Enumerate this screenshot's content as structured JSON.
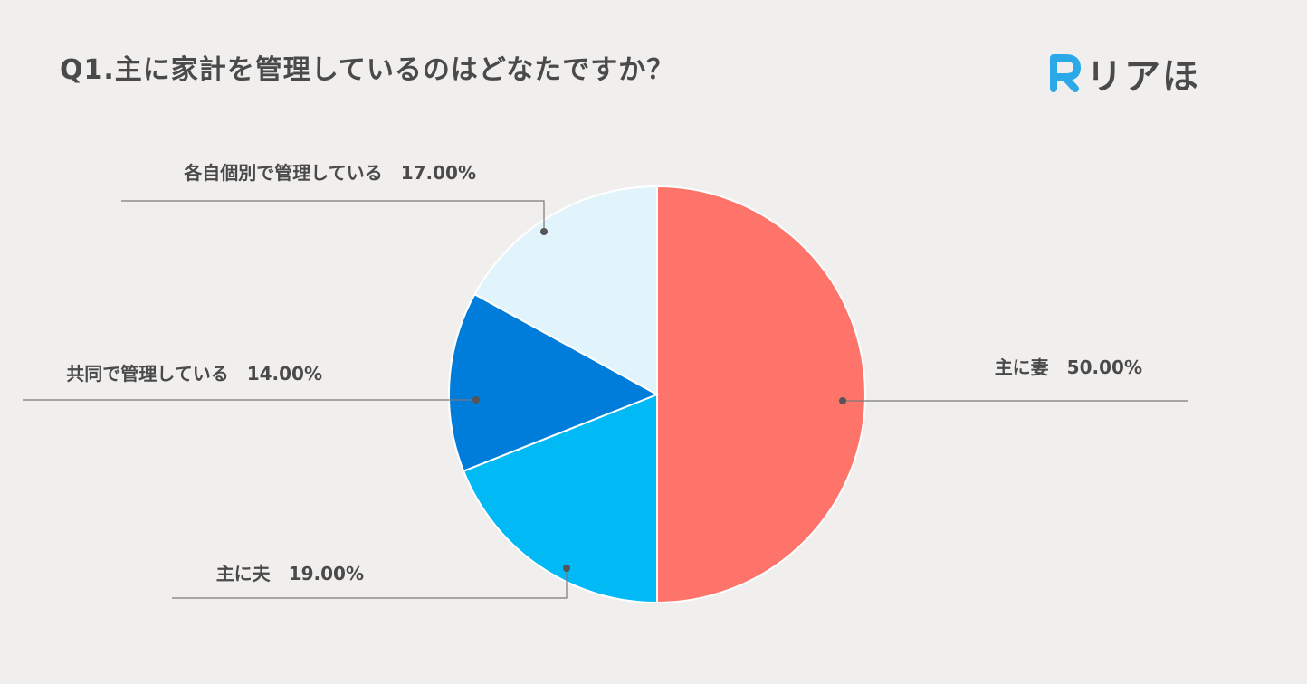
{
  "header": {
    "title": "Q1.主に家計を管理しているのはどなたですか？",
    "logo_text": "リアほ",
    "logo_letter": "R"
  },
  "colors": {
    "background": "#f0efed",
    "logo_accent": "#2aa8e8",
    "text": "#4a4a4a",
    "leader_line": "#7a7a7a"
  },
  "chart_data": {
    "type": "pie",
    "title": "",
    "slices": [
      {
        "label": "主に妻",
        "value": 50.0,
        "display": "50.00%",
        "color": "#ff746a"
      },
      {
        "label": "主に夫",
        "value": 19.0,
        "display": "19.00%",
        "color": "#00b9f5"
      },
      {
        "label": "共同で管理している",
        "value": 14.0,
        "display": "14.00%",
        "color": "#007dda"
      },
      {
        "label": "各自個別で管理している",
        "value": 17.0,
        "display": "17.00%",
        "color": "#e2f4fb"
      }
    ],
    "start_angle": "12 o'clock",
    "direction": "clockwise",
    "legend": "none"
  }
}
